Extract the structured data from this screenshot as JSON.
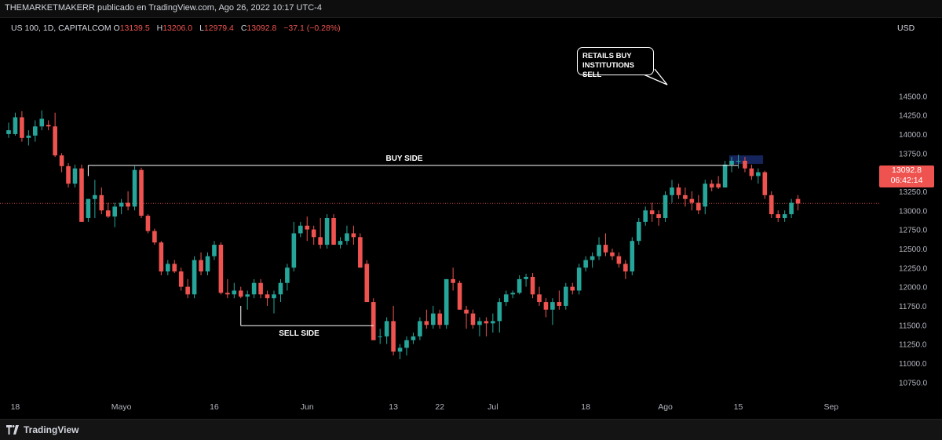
{
  "header": {
    "text": "THEMARKETMAKERR publicado en TradingView.com, Ago 26, 2022 10:17 UTC-4"
  },
  "symbol": {
    "name": "US 100, 1D, CAPITALCOM",
    "o_label": "O",
    "o_value": "13139.5",
    "h_label": "H",
    "h_value": "13206.0",
    "l_label": "L",
    "l_value": "12979.4",
    "c_label": "C",
    "c_value": "13092.8",
    "change": "−37.1 (−0.28%)"
  },
  "currency": "USD",
  "price_tag": {
    "price": "13092.8",
    "countdown": "06:42:14"
  },
  "annotations": {
    "buy_side": "BUY SIDE",
    "sell_side": "SELL SIDE",
    "note_line1": "RETAILS BUY",
    "note_line2": "INSTITUTIONS SELL"
  },
  "footer": {
    "brand": "TradingView"
  },
  "colors": {
    "up": "#26a69a",
    "down": "#ef5350",
    "background": "#000000",
    "text": "#d1d4dc"
  },
  "chart_data": {
    "type": "candlestick",
    "title": "US 100, 1D, CAPITALCOM",
    "ylabel": "USD",
    "ylim": [
      10650,
      14600
    ],
    "y_ticks": [
      10750,
      11000,
      11250,
      11500,
      11750,
      12000,
      12250,
      12500,
      12750,
      13000,
      13250,
      13500,
      13750,
      14000,
      14250,
      14500
    ],
    "y_tick_labels": [
      "10750.0",
      "11000.0",
      "11250.0",
      "11500.0",
      "11750.0",
      "12000.0",
      "12250.0",
      "12500.0",
      "12750.0",
      "13000.0",
      "13250.0",
      "13500.0",
      "13750.0",
      "14000.0",
      "14250.0",
      "14500.0"
    ],
    "x_tick_labels": [
      "18",
      "Mayo",
      "16",
      "Jun",
      "13",
      "22",
      "Jul",
      "18",
      "Ago",
      "15",
      "Sep"
    ],
    "x_tick_bar_index": [
      1,
      17,
      31,
      45,
      58,
      65,
      73,
      87,
      99,
      110,
      124
    ],
    "last_price": 13092.8,
    "levels": [
      {
        "label": "BUY SIDE",
        "price": 13590,
        "from_bar": 12,
        "to_bar": 110
      },
      {
        "label": "SELL SIDE",
        "price": 11490,
        "from_bar": 35,
        "to_bar": 55
      }
    ],
    "candles": [
      {
        "o": 14000,
        "h": 14150,
        "l": 13950,
        "c": 14050
      },
      {
        "o": 14000,
        "h": 14280,
        "l": 13980,
        "c": 14220
      },
      {
        "o": 14220,
        "h": 14300,
        "l": 13900,
        "c": 13950
      },
      {
        "o": 13950,
        "h": 14050,
        "l": 13850,
        "c": 13980
      },
      {
        "o": 13980,
        "h": 14180,
        "l": 13900,
        "c": 14100
      },
      {
        "o": 14100,
        "h": 14310,
        "l": 14050,
        "c": 14200
      },
      {
        "o": 14120,
        "h": 14180,
        "l": 14050,
        "c": 14100
      },
      {
        "o": 14100,
        "h": 14280,
        "l": 13700,
        "c": 13720
      },
      {
        "o": 13720,
        "h": 13750,
        "l": 13500,
        "c": 13580
      },
      {
        "o": 13580,
        "h": 13620,
        "l": 13300,
        "c": 13350
      },
      {
        "o": 13350,
        "h": 13600,
        "l": 13300,
        "c": 13550
      },
      {
        "o": 13550,
        "h": 13600,
        "l": 12850,
        "c": 12850
      },
      {
        "o": 12900,
        "h": 13150,
        "l": 12850,
        "c": 13150
      },
      {
        "o": 13150,
        "h": 13400,
        "l": 12900,
        "c": 13200
      },
      {
        "o": 13200,
        "h": 13300,
        "l": 12950,
        "c": 13000
      },
      {
        "o": 13000,
        "h": 13100,
        "l": 12900,
        "c": 12920
      },
      {
        "o": 12920,
        "h": 13100,
        "l": 12780,
        "c": 13050
      },
      {
        "o": 13050,
        "h": 13150,
        "l": 12950,
        "c": 13100
      },
      {
        "o": 13100,
        "h": 13250,
        "l": 13000,
        "c": 13050
      },
      {
        "o": 13050,
        "h": 13580,
        "l": 13000,
        "c": 13530
      },
      {
        "o": 13530,
        "h": 13560,
        "l": 12900,
        "c": 12930
      },
      {
        "o": 12930,
        "h": 12950,
        "l": 12700,
        "c": 12730
      },
      {
        "o": 12730,
        "h": 12760,
        "l": 12550,
        "c": 12580
      },
      {
        "o": 12580,
        "h": 12600,
        "l": 12150,
        "c": 12200
      },
      {
        "o": 12200,
        "h": 12350,
        "l": 12150,
        "c": 12300
      },
      {
        "o": 12300,
        "h": 12350,
        "l": 12180,
        "c": 12200
      },
      {
        "o": 12200,
        "h": 12250,
        "l": 11950,
        "c": 12000
      },
      {
        "o": 12000,
        "h": 12100,
        "l": 11850,
        "c": 11900
      },
      {
        "o": 11900,
        "h": 12400,
        "l": 11850,
        "c": 12350
      },
      {
        "o": 12350,
        "h": 12450,
        "l": 12150,
        "c": 12200
      },
      {
        "o": 12200,
        "h": 12450,
        "l": 12150,
        "c": 12400
      },
      {
        "o": 12400,
        "h": 12600,
        "l": 12350,
        "c": 12550
      },
      {
        "o": 12550,
        "h": 12580,
        "l": 11900,
        "c": 11920
      },
      {
        "o": 11920,
        "h": 12100,
        "l": 11850,
        "c": 11900
      },
      {
        "o": 11900,
        "h": 12050,
        "l": 11850,
        "c": 11950
      },
      {
        "o": 11950,
        "h": 12000,
        "l": 11850,
        "c": 11870
      },
      {
        "o": 11870,
        "h": 11950,
        "l": 11700,
        "c": 11900
      },
      {
        "o": 11900,
        "h": 12100,
        "l": 11850,
        "c": 12050
      },
      {
        "o": 12050,
        "h": 12100,
        "l": 11850,
        "c": 11900
      },
      {
        "o": 11900,
        "h": 11950,
        "l": 11750,
        "c": 11850
      },
      {
        "o": 11850,
        "h": 11950,
        "l": 11650,
        "c": 11900
      },
      {
        "o": 11900,
        "h": 12100,
        "l": 11800,
        "c": 12050
      },
      {
        "o": 12050,
        "h": 12300,
        "l": 11950,
        "c": 12250
      },
      {
        "o": 12250,
        "h": 12850,
        "l": 12200,
        "c": 12700
      },
      {
        "o": 12700,
        "h": 12850,
        "l": 12650,
        "c": 12800
      },
      {
        "o": 12800,
        "h": 12920,
        "l": 12600,
        "c": 12750
      },
      {
        "o": 12750,
        "h": 12800,
        "l": 12550,
        "c": 12650
      },
      {
        "o": 12650,
        "h": 12900,
        "l": 12500,
        "c": 12550
      },
      {
        "o": 12550,
        "h": 12950,
        "l": 12500,
        "c": 12900
      },
      {
        "o": 12900,
        "h": 12950,
        "l": 12550,
        "c": 12550
      },
      {
        "o": 12550,
        "h": 12650,
        "l": 12500,
        "c": 12600
      },
      {
        "o": 12600,
        "h": 12800,
        "l": 12550,
        "c": 12700
      },
      {
        "o": 12700,
        "h": 12800,
        "l": 12550,
        "c": 12650
      },
      {
        "o": 12650,
        "h": 12700,
        "l": 12250,
        "c": 12250
      },
      {
        "o": 12300,
        "h": 12350,
        "l": 11800,
        "c": 11800
      },
      {
        "o": 11800,
        "h": 11850,
        "l": 11300,
        "c": 11300
      },
      {
        "o": 11350,
        "h": 11450,
        "l": 11250,
        "c": 11350
      },
      {
        "o": 11350,
        "h": 11600,
        "l": 11250,
        "c": 11550
      },
      {
        "o": 11550,
        "h": 11750,
        "l": 11100,
        "c": 11150
      },
      {
        "o": 11150,
        "h": 11250,
        "l": 11050,
        "c": 11200
      },
      {
        "o": 11200,
        "h": 11350,
        "l": 11100,
        "c": 11300
      },
      {
        "o": 11300,
        "h": 11400,
        "l": 11250,
        "c": 11350
      },
      {
        "o": 11350,
        "h": 11600,
        "l": 11300,
        "c": 11550
      },
      {
        "o": 11550,
        "h": 11700,
        "l": 11450,
        "c": 11500
      },
      {
        "o": 11500,
        "h": 11750,
        "l": 11450,
        "c": 11650
      },
      {
        "o": 11650,
        "h": 11700,
        "l": 11450,
        "c": 11500
      },
      {
        "o": 11500,
        "h": 12100,
        "l": 11450,
        "c": 12100
      },
      {
        "o": 12100,
        "h": 12250,
        "l": 11950,
        "c": 12050
      },
      {
        "o": 12050,
        "h": 12080,
        "l": 11700,
        "c": 11700
      },
      {
        "o": 11700,
        "h": 11750,
        "l": 11450,
        "c": 11650
      },
      {
        "o": 11650,
        "h": 11700,
        "l": 11450,
        "c": 11500
      },
      {
        "o": 11500,
        "h": 11600,
        "l": 11350,
        "c": 11550
      },
      {
        "o": 11550,
        "h": 11600,
        "l": 11350,
        "c": 11520
      },
      {
        "o": 11520,
        "h": 11650,
        "l": 11400,
        "c": 11550
      },
      {
        "o": 11550,
        "h": 11850,
        "l": 11400,
        "c": 11800
      },
      {
        "o": 11800,
        "h": 11950,
        "l": 11750,
        "c": 11900
      },
      {
        "o": 11900,
        "h": 11950,
        "l": 11850,
        "c": 11920
      },
      {
        "o": 11920,
        "h": 12150,
        "l": 11900,
        "c": 12100
      },
      {
        "o": 12100,
        "h": 12170,
        "l": 12000,
        "c": 12130
      },
      {
        "o": 12130,
        "h": 12180,
        "l": 11850,
        "c": 11900
      },
      {
        "o": 11900,
        "h": 12000,
        "l": 11750,
        "c": 11800
      },
      {
        "o": 11800,
        "h": 11850,
        "l": 11600,
        "c": 11700
      },
      {
        "o": 11700,
        "h": 11850,
        "l": 11500,
        "c": 11800
      },
      {
        "o": 11800,
        "h": 11950,
        "l": 11700,
        "c": 11750
      },
      {
        "o": 11750,
        "h": 12050,
        "l": 11700,
        "c": 12000
      },
      {
        "o": 12000,
        "h": 12050,
        "l": 11900,
        "c": 11950
      },
      {
        "o": 11950,
        "h": 12300,
        "l": 11900,
        "c": 12250
      },
      {
        "o": 12250,
        "h": 12400,
        "l": 12200,
        "c": 12350
      },
      {
        "o": 12350,
        "h": 12450,
        "l": 12250,
        "c": 12400
      },
      {
        "o": 12400,
        "h": 12650,
        "l": 12350,
        "c": 12550
      },
      {
        "o": 12550,
        "h": 12700,
        "l": 12400,
        "c": 12450
      },
      {
        "o": 12450,
        "h": 12500,
        "l": 12350,
        "c": 12400
      },
      {
        "o": 12400,
        "h": 12450,
        "l": 12250,
        "c": 12300
      },
      {
        "o": 12300,
        "h": 12350,
        "l": 12100,
        "c": 12200
      },
      {
        "o": 12200,
        "h": 12650,
        "l": 12150,
        "c": 12600
      },
      {
        "o": 12600,
        "h": 12900,
        "l": 12550,
        "c": 12850
      },
      {
        "o": 12850,
        "h": 13050,
        "l": 12800,
        "c": 13000
      },
      {
        "o": 13000,
        "h": 13100,
        "l": 12850,
        "c": 12950
      },
      {
        "o": 12950,
        "h": 13000,
        "l": 12800,
        "c": 12900
      },
      {
        "o": 12900,
        "h": 13250,
        "l": 12850,
        "c": 13200
      },
      {
        "o": 13200,
        "h": 13400,
        "l": 13100,
        "c": 13300
      },
      {
        "o": 13300,
        "h": 13350,
        "l": 13150,
        "c": 13200
      },
      {
        "o": 13200,
        "h": 13300,
        "l": 13050,
        "c": 13150
      },
      {
        "o": 13150,
        "h": 13250,
        "l": 13000,
        "c": 13100
      },
      {
        "o": 13100,
        "h": 13200,
        "l": 12950,
        "c": 13000
      },
      {
        "o": 13050,
        "h": 13400,
        "l": 12950,
        "c": 13350
      },
      {
        "o": 13350,
        "h": 13400,
        "l": 13250,
        "c": 13300
      },
      {
        "o": 13350,
        "h": 13450,
        "l": 13280,
        "c": 13300
      },
      {
        "o": 13300,
        "h": 13650,
        "l": 13300,
        "c": 13600
      },
      {
        "o": 13600,
        "h": 13700,
        "l": 13500,
        "c": 13650
      },
      {
        "o": 13650,
        "h": 13730,
        "l": 13550,
        "c": 13650
      },
      {
        "o": 13650,
        "h": 13700,
        "l": 13500,
        "c": 13550
      },
      {
        "o": 13550,
        "h": 13600,
        "l": 13400,
        "c": 13450
      },
      {
        "o": 13450,
        "h": 13550,
        "l": 13350,
        "c": 13500
      },
      {
        "o": 13500,
        "h": 13520,
        "l": 13150,
        "c": 13200
      },
      {
        "o": 13200,
        "h": 13250,
        "l": 12900,
        "c": 12950
      },
      {
        "o": 12950,
        "h": 13000,
        "l": 12850,
        "c": 12900
      },
      {
        "o": 12900,
        "h": 13000,
        "l": 12850,
        "c": 12950
      },
      {
        "o": 12950,
        "h": 13150,
        "l": 12900,
        "c": 13100
      },
      {
        "o": 13150,
        "h": 13200,
        "l": 13000,
        "c": 13090
      }
    ]
  }
}
